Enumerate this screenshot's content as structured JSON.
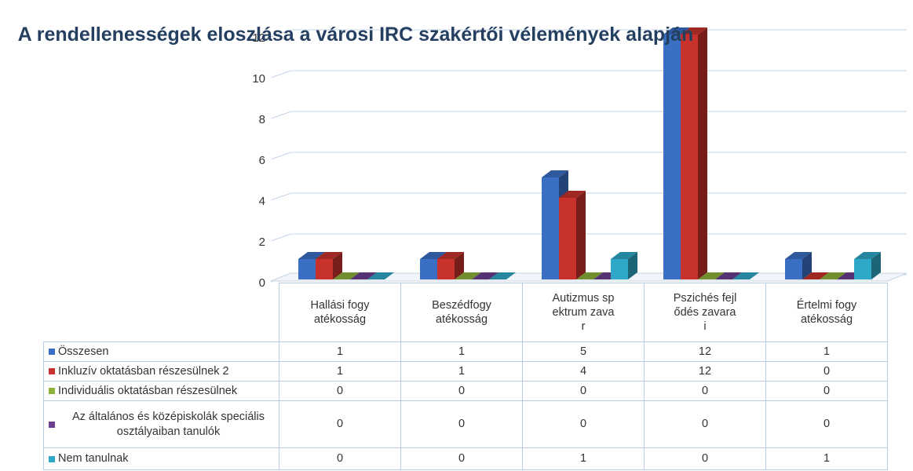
{
  "chart_data": {
    "type": "bar3d",
    "title": "A rendellenességek eloszlása a városi IRC szakértői vélemények alapján",
    "categories": [
      "Hallási fogyatékosság",
      "Beszédfogyatékosság",
      "Autizmus spektrum zavar",
      "Pszichés fejlődés zavarai",
      "Értelmi fogyatékosság"
    ],
    "series": [
      {
        "name": "Összesen",
        "color": "#3a6fc4",
        "values": [
          1,
          1,
          5,
          12,
          1
        ]
      },
      {
        "name": "Inkluzív oktatásban részesülnek 2",
        "color": "#c8322c",
        "values": [
          1,
          1,
          4,
          12,
          0
        ]
      },
      {
        "name": "Individuális oktatásban részesülnek",
        "color": "#8db33a",
        "values": [
          0,
          0,
          0,
          0,
          0
        ]
      },
      {
        "name": "Az általános és középiskolák speciális osztályaiban tanulók",
        "color": "#6a3f8f",
        "values": [
          0,
          0,
          0,
          0,
          0
        ]
      },
      {
        "name": "Nem tanulnak",
        "color": "#2fa8c8",
        "values": [
          0,
          0,
          1,
          0,
          1
        ]
      }
    ],
    "ylim": [
      0,
      12
    ],
    "yticks": [
      0,
      2,
      4,
      6,
      8,
      10,
      12
    ],
    "grid": true,
    "data_table": true
  }
}
